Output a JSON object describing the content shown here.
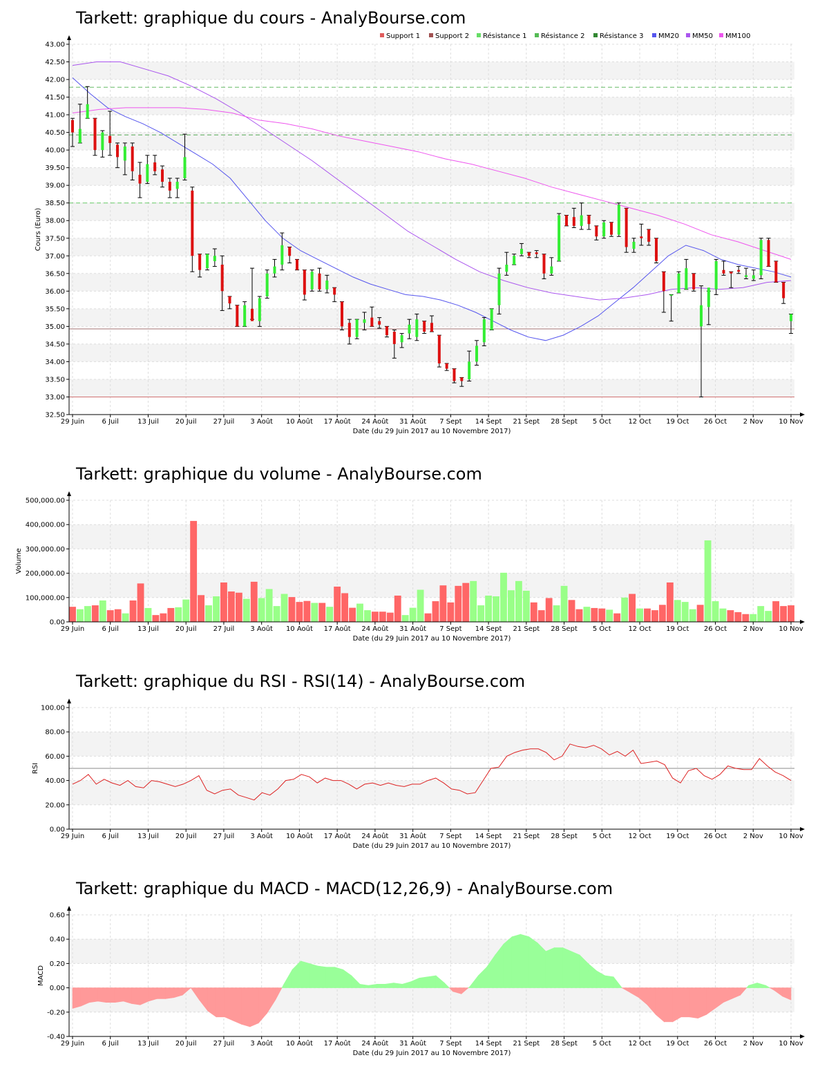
{
  "chart_data": [
    {
      "type": "candlestick",
      "title": "Tarkett: graphique du cours - AnalyBourse.com",
      "xlabel": "Date (du 29 Juin 2017 au 10 Novembre 2017)",
      "ylabel": "Cours (Euro)",
      "ylim": [
        32.5,
        43.0
      ],
      "y_ticks": [
        "32.50",
        "33.00",
        "33.50",
        "34.00",
        "34.50",
        "35.00",
        "35.50",
        "36.00",
        "36.50",
        "37.00",
        "37.50",
        "38.00",
        "38.50",
        "39.00",
        "39.50",
        "40.00",
        "40.50",
        "41.00",
        "41.50",
        "42.00",
        "42.50",
        "43.00"
      ],
      "x_ticks": [
        "29 Juin",
        "6 Juil",
        "13 Juil",
        "20 Juil",
        "27 Juil",
        "3 Août",
        "10 Août",
        "17 Août",
        "24 Août",
        "31 Août",
        "7 Sept",
        "14 Sept",
        "21 Sept",
        "28 Sept",
        "5 Oct",
        "12 Oct",
        "19 Oct",
        "26 Oct",
        "2 Nov",
        "10 Nov"
      ],
      "grid": true,
      "legend_position": "top-right",
      "legend": [
        {
          "name": "Support 1",
          "color": "#e05c5c"
        },
        {
          "name": "Support 2",
          "color": "#a05050"
        },
        {
          "name": "Résistance 1",
          "color": "#66dd66"
        },
        {
          "name": "Résistance 2",
          "color": "#55bb55"
        },
        {
          "name": "Résistance 3",
          "color": "#338833"
        },
        {
          "name": "MM20",
          "color": "#5555ee"
        },
        {
          "name": "MM50",
          "color": "#aa55ee"
        },
        {
          "name": "MM100",
          "color": "#ee55ee"
        }
      ],
      "levels": {
        "support1": 33.0,
        "support2": 34.93,
        "resistance1": 38.5,
        "resistance2": 40.43,
        "resistance3": 41.78
      },
      "candles_ohlc": [
        [
          40.85,
          40.9,
          40.1,
          40.5
        ],
        [
          40.2,
          41.3,
          40.2,
          40.6
        ],
        [
          40.9,
          41.8,
          40.9,
          41.3
        ],
        [
          40.9,
          40.9,
          39.85,
          40.0
        ],
        [
          40.0,
          40.55,
          39.8,
          40.5
        ],
        [
          40.4,
          41.1,
          39.85,
          40.2
        ],
        [
          40.15,
          40.2,
          39.5,
          39.8
        ],
        [
          39.7,
          40.2,
          39.3,
          40.1
        ],
        [
          40.1,
          40.2,
          39.15,
          39.4
        ],
        [
          39.3,
          39.65,
          38.65,
          39.05
        ],
        [
          39.1,
          39.85,
          39.05,
          39.6
        ],
        [
          39.65,
          39.85,
          39.3,
          39.4
        ],
        [
          39.45,
          39.55,
          38.95,
          39.1
        ],
        [
          39.1,
          39.2,
          38.65,
          38.85
        ],
        [
          38.9,
          39.2,
          38.65,
          39.1
        ],
        [
          39.2,
          40.45,
          39.15,
          39.8
        ],
        [
          38.85,
          38.95,
          36.55,
          37.0
        ],
        [
          37.05,
          37.05,
          36.4,
          36.6
        ],
        [
          36.65,
          37.05,
          36.6,
          37.05
        ],
        [
          36.85,
          37.2,
          36.7,
          37.0
        ],
        [
          36.75,
          37.0,
          35.45,
          36.0
        ],
        [
          35.85,
          35.85,
          35.5,
          35.65
        ],
        [
          35.6,
          35.6,
          35.0,
          35.0
        ],
        [
          35.0,
          35.7,
          35.0,
          35.6
        ],
        [
          35.5,
          36.65,
          35.2,
          35.15
        ],
        [
          35.15,
          35.85,
          35.0,
          35.8
        ],
        [
          35.85,
          36.6,
          35.8,
          36.5
        ],
        [
          36.5,
          36.9,
          36.4,
          36.7
        ],
        [
          36.75,
          37.65,
          36.6,
          37.3
        ],
        [
          37.25,
          37.25,
          36.8,
          37.0
        ],
        [
          36.9,
          36.9,
          36.6,
          36.6
        ],
        [
          36.6,
          36.6,
          35.75,
          35.9
        ],
        [
          36.05,
          36.6,
          36.0,
          36.55
        ],
        [
          36.5,
          36.65,
          36.0,
          36.05
        ],
        [
          36.05,
          36.45,
          35.95,
          36.3
        ],
        [
          36.1,
          36.1,
          35.7,
          35.9
        ],
        [
          35.7,
          35.7,
          34.9,
          35.0
        ],
        [
          35.1,
          35.2,
          34.5,
          34.7
        ],
        [
          34.7,
          35.2,
          34.65,
          35.2
        ],
        [
          35.1,
          35.4,
          34.9,
          35.2
        ],
        [
          35.25,
          35.55,
          35.0,
          35.0
        ],
        [
          35.15,
          35.25,
          34.95,
          35.05
        ],
        [
          35.0,
          35.0,
          34.7,
          34.75
        ],
        [
          34.85,
          34.9,
          34.1,
          34.5
        ],
        [
          34.55,
          34.8,
          34.4,
          34.75
        ],
        [
          34.8,
          35.2,
          34.65,
          35.05
        ],
        [
          34.7,
          35.35,
          34.6,
          35.2
        ],
        [
          35.15,
          35.15,
          34.8,
          34.85
        ],
        [
          35.1,
          35.3,
          34.85,
          34.85
        ],
        [
          34.75,
          34.75,
          33.85,
          33.95
        ],
        [
          33.95,
          33.95,
          33.75,
          33.8
        ],
        [
          33.8,
          33.8,
          33.4,
          33.45
        ],
        [
          33.55,
          33.55,
          33.3,
          33.45
        ],
        [
          33.5,
          34.3,
          33.45,
          34.0
        ],
        [
          34.0,
          34.6,
          33.9,
          34.45
        ],
        [
          34.55,
          35.25,
          34.45,
          35.2
        ],
        [
          34.9,
          35.5,
          34.9,
          35.5
        ],
        [
          35.6,
          36.65,
          35.35,
          36.5
        ],
        [
          36.55,
          37.1,
          36.45,
          36.75
        ],
        [
          36.75,
          37.05,
          36.75,
          37.0
        ],
        [
          37.05,
          37.35,
          37.0,
          37.2
        ],
        [
          37.1,
          37.1,
          36.95,
          37.0
        ],
        [
          37.1,
          37.15,
          36.95,
          37.05
        ],
        [
          37.05,
          37.05,
          36.35,
          36.5
        ],
        [
          36.5,
          36.95,
          36.45,
          36.7
        ],
        [
          36.85,
          38.2,
          36.85,
          38.15
        ],
        [
          38.15,
          38.15,
          37.85,
          37.85
        ],
        [
          38.1,
          38.35,
          37.8,
          37.85
        ],
        [
          37.85,
          38.5,
          37.75,
          38.15
        ],
        [
          38.15,
          38.15,
          37.75,
          37.9
        ],
        [
          37.85,
          37.85,
          37.45,
          37.55
        ],
        [
          37.55,
          38.0,
          37.5,
          37.95
        ],
        [
          37.95,
          37.95,
          37.55,
          37.6
        ],
        [
          37.6,
          38.5,
          37.55,
          38.45
        ],
        [
          38.35,
          38.35,
          37.1,
          37.25
        ],
        [
          37.2,
          37.5,
          37.1,
          37.4
        ],
        [
          37.55,
          37.9,
          37.3,
          37.5
        ],
        [
          37.75,
          37.75,
          37.3,
          37.4
        ],
        [
          37.5,
          37.5,
          36.8,
          36.85
        ],
        [
          36.55,
          36.55,
          35.4,
          36.0
        ],
        [
          35.9,
          35.9,
          35.15,
          35.9
        ],
        [
          35.95,
          36.55,
          35.95,
          36.5
        ],
        [
          36.05,
          36.9,
          36.05,
          36.65
        ],
        [
          36.5,
          36.5,
          36.0,
          36.05
        ],
        [
          35.0,
          36.15,
          33.0,
          35.6
        ],
        [
          35.55,
          36.0,
          35.05,
          36.1
        ],
        [
          36.05,
          36.9,
          35.9,
          36.85
        ],
        [
          36.6,
          36.85,
          36.45,
          36.5
        ],
        [
          36.55,
          36.55,
          36.1,
          36.5
        ],
        [
          36.6,
          36.7,
          36.5,
          36.55
        ],
        [
          36.4,
          36.65,
          36.35,
          36.45
        ],
        [
          36.35,
          36.6,
          36.3,
          36.45
        ],
        [
          36.45,
          37.5,
          36.35,
          37.45
        ],
        [
          37.45,
          37.5,
          36.7,
          36.7
        ],
        [
          36.85,
          36.85,
          36.25,
          36.25
        ],
        [
          36.25,
          36.25,
          35.65,
          35.8
        ],
        [
          35.15,
          35.35,
          34.8,
          35.35
        ]
      ],
      "series": [
        {
          "name": "MM20",
          "values": [
            42.05,
            41.6,
            41.2,
            40.95,
            40.75,
            40.5,
            40.2,
            39.9,
            39.6,
            39.2,
            38.6,
            38.0,
            37.5,
            37.15,
            36.9,
            36.65,
            36.4,
            36.2,
            36.05,
            35.9,
            35.85,
            35.75,
            35.6,
            35.4,
            35.15,
            34.9,
            34.7,
            34.6,
            34.75,
            35.0,
            35.3,
            35.7,
            36.1,
            36.55,
            37.0,
            37.3,
            37.15,
            36.9,
            36.75,
            36.65,
            36.55,
            36.4
          ]
        },
        {
          "name": "MM50",
          "values": [
            42.4,
            42.5,
            42.5,
            42.3,
            42.1,
            41.8,
            41.45,
            41.05,
            40.6,
            40.15,
            39.7,
            39.2,
            38.7,
            38.2,
            37.7,
            37.3,
            36.9,
            36.55,
            36.3,
            36.1,
            35.95,
            35.85,
            35.75,
            35.8,
            35.9,
            36.05,
            36.1,
            36.05,
            36.1,
            36.25,
            36.3
          ]
        },
        {
          "name": "MM100",
          "values": [
            41.05,
            41.15,
            41.2,
            41.2,
            41.2,
            41.15,
            41.05,
            40.85,
            40.75,
            40.6,
            40.4,
            40.25,
            40.1,
            39.95,
            39.75,
            39.6,
            39.4,
            39.2,
            38.95,
            38.75,
            38.55,
            38.35,
            38.15,
            37.9,
            37.6,
            37.4,
            37.15,
            36.9
          ]
        }
      ]
    },
    {
      "type": "bar",
      "title": "Tarkett: graphique du volume - AnalyBourse.com",
      "xlabel": "Date (du 29 Juin 2017 au 10 Novembre 2017)",
      "ylabel": "Volume",
      "ylim": [
        0,
        500000
      ],
      "y_ticks": [
        "0.00",
        "100,000.00",
        "200,000.00",
        "300,000.00",
        "400,000.00",
        "500,000.00"
      ],
      "x_ticks": [
        "29 Juin",
        "6 Juil",
        "13 Juil",
        "20 Juil",
        "27 Juil",
        "3 Août",
        "10 Août",
        "17 Août",
        "24 Août",
        "31 Août",
        "7 Sept",
        "14 Sept",
        "21 Sept",
        "28 Sept",
        "5 Oct",
        "12 Oct",
        "19 Oct",
        "26 Oct",
        "2 Nov",
        "10 Nov"
      ],
      "grid": true,
      "colors": {
        "up": "#99ff88",
        "down": "#ff6666"
      },
      "values": [
        62000,
        52000,
        65000,
        68000,
        88000,
        48000,
        52000,
        35000,
        88000,
        158000,
        57000,
        28000,
        35000,
        57000,
        60000,
        92000,
        415000,
        110000,
        68000,
        105000,
        162000,
        125000,
        120000,
        95000,
        165000,
        98000,
        135000,
        65000,
        115000,
        102000,
        82000,
        86000,
        78000,
        78000,
        62000,
        145000,
        118000,
        58000,
        75000,
        48000,
        42000,
        42000,
        38000,
        108000,
        28000,
        58000,
        132000,
        35000,
        85000,
        150000,
        80000,
        148000,
        160000,
        168000,
        68000,
        108000,
        105000,
        202000,
        130000,
        168000,
        128000,
        80000,
        48000,
        98000,
        68000,
        148000,
        90000,
        52000,
        62000,
        57000,
        55000,
        50000,
        35000,
        100000,
        115000,
        55000,
        55000,
        48000,
        70000,
        162000,
        90000,
        82000,
        52000,
        70000,
        335000,
        85000,
        55000,
        48000,
        40000,
        32000,
        32000,
        65000,
        45000,
        85000,
        65000,
        68000
      ]
    },
    {
      "type": "line",
      "title": "Tarkett: graphique du RSI - RSI(14) - AnalyBourse.com",
      "xlabel": "Date (du 29 Juin 2017 au 10 Novembre 2017)",
      "ylabel": "RSI",
      "ylim": [
        0,
        100
      ],
      "y_ticks": [
        "0.00",
        "20.00",
        "40.00",
        "60.00",
        "80.00",
        "100.00"
      ],
      "x_ticks": [
        "29 Juin",
        "6 Juil",
        "13 Juil",
        "20 Juil",
        "27 Juil",
        "3 Août",
        "10 Août",
        "17 Août",
        "24 Août",
        "31 Août",
        "7 Sept",
        "14 Sept",
        "21 Sept",
        "28 Sept",
        "5 Oct",
        "12 Oct",
        "19 Oct",
        "26 Oct",
        "2 Nov",
        "10 Nov"
      ],
      "reference_line": 50,
      "grid": true,
      "series": [
        {
          "values": [
            37,
            40,
            45,
            37,
            41,
            38,
            36,
            40,
            35,
            34,
            40,
            39,
            37,
            35,
            37,
            40,
            44,
            32,
            29,
            32,
            33,
            28,
            26,
            24,
            30,
            28,
            33,
            40,
            41,
            45,
            43,
            38,
            42,
            40,
            40,
            37,
            33,
            37,
            38,
            36,
            38,
            36,
            35,
            37,
            37,
            40,
            42,
            38,
            33,
            32,
            29,
            30,
            40,
            50,
            51,
            60,
            63,
            65,
            66,
            66,
            63,
            57,
            60,
            70,
            68,
            67,
            69,
            66,
            61,
            64,
            60,
            65,
            54,
            55,
            56,
            53,
            42,
            38,
            48,
            50,
            44,
            41,
            45,
            52,
            50,
            49,
            49,
            58,
            52,
            47,
            44,
            40
          ]
        }
      ]
    },
    {
      "type": "area",
      "title": "Tarkett: graphique du MACD - MACD(12,26,9) - AnalyBourse.com",
      "xlabel": "Date (du 29 Juin 2017 au 10 Novembre 2017)",
      "ylabel": "MACD",
      "ylim": [
        -0.4,
        0.6
      ],
      "y_ticks": [
        "-0.40",
        "-0.20",
        "0.00",
        "0.20",
        "0.40",
        "0.60"
      ],
      "x_ticks": [
        "29 Juin",
        "6 Juil",
        "13 Juil",
        "20 Juil",
        "27 Juil",
        "3 Août",
        "10 Août",
        "17 Août",
        "24 Août",
        "31 Août",
        "7 Sept",
        "14 Sept",
        "21 Sept",
        "28 Sept",
        "5 Oct",
        "12 Oct",
        "19 Oct",
        "26 Oct",
        "2 Nov",
        "10 Nov"
      ],
      "grid": true,
      "colors": {
        "positive": "#99ff99",
        "negative": "#ff9999"
      },
      "series": [
        {
          "values": [
            -0.17,
            -0.15,
            -0.12,
            -0.11,
            -0.12,
            -0.12,
            -0.11,
            -0.13,
            -0.14,
            -0.11,
            -0.09,
            -0.09,
            -0.08,
            -0.06,
            0.0,
            -0.1,
            -0.19,
            -0.24,
            -0.24,
            -0.27,
            -0.3,
            -0.32,
            -0.29,
            -0.21,
            -0.1,
            0.03,
            0.15,
            0.22,
            0.2,
            0.18,
            0.17,
            0.17,
            0.15,
            0.1,
            0.03,
            0.02,
            0.03,
            0.03,
            0.04,
            0.03,
            0.05,
            0.08,
            0.09,
            0.1,
            0.04,
            -0.03,
            -0.05,
            0.01,
            0.1,
            0.17,
            0.27,
            0.36,
            0.42,
            0.44,
            0.42,
            0.37,
            0.3,
            0.33,
            0.33,
            0.3,
            0.27,
            0.2,
            0.14,
            0.1,
            0.09,
            0.0,
            -0.04,
            -0.08,
            -0.14,
            -0.22,
            -0.28,
            -0.28,
            -0.24,
            -0.24,
            -0.25,
            -0.22,
            -0.17,
            -0.12,
            -0.09,
            -0.06,
            0.02,
            0.04,
            0.02,
            -0.02,
            -0.07,
            -0.1
          ]
        }
      ]
    }
  ]
}
